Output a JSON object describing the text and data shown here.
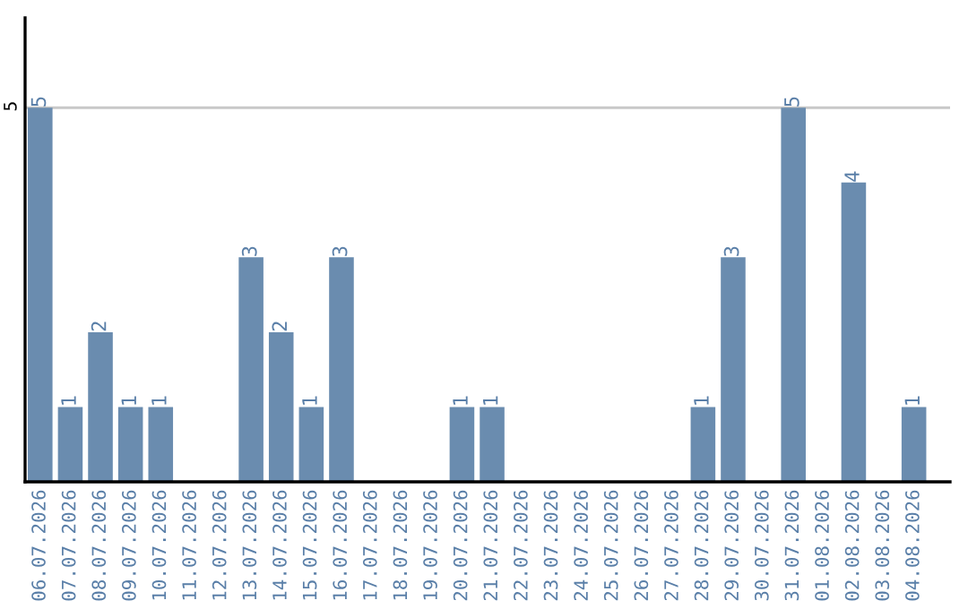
{
  "chart_data": {
    "type": "bar",
    "categories": [
      "06.07.2026",
      "07.07.2026",
      "08.07.2026",
      "09.07.2026",
      "10.07.2026",
      "11.07.2026",
      "12.07.2026",
      "13.07.2026",
      "14.07.2026",
      "15.07.2026",
      "16.07.2026",
      "17.07.2026",
      "18.07.2026",
      "19.07.2026",
      "20.07.2026",
      "21.07.2026",
      "22.07.2026",
      "23.07.2026",
      "24.07.2026",
      "25.07.2026",
      "26.07.2026",
      "27.07.2026",
      "28.07.2026",
      "29.07.2026",
      "30.07.2026",
      "31.07.2026",
      "01.08.2026",
      "02.08.2026",
      "03.08.2026",
      "04.08.2026"
    ],
    "values": [
      5,
      1,
      2,
      1,
      1,
      0,
      0,
      3,
      2,
      1,
      3,
      0,
      0,
      0,
      1,
      1,
      0,
      0,
      0,
      0,
      0,
      0,
      1,
      3,
      0,
      5,
      0,
      4,
      0,
      1
    ],
    "value_labels": [
      "5",
      "1",
      "2",
      "1",
      "1",
      null,
      null,
      "3",
      "2",
      "1",
      "3",
      null,
      null,
      null,
      "1",
      "1",
      null,
      null,
      null,
      null,
      null,
      null,
      "1",
      "3",
      null,
      "5",
      null,
      "4",
      null,
      "1"
    ],
    "color": "#6a8caf",
    "ylim": [
      0,
      6.2
    ],
    "yticks": [
      5
    ],
    "grid": "y"
  }
}
